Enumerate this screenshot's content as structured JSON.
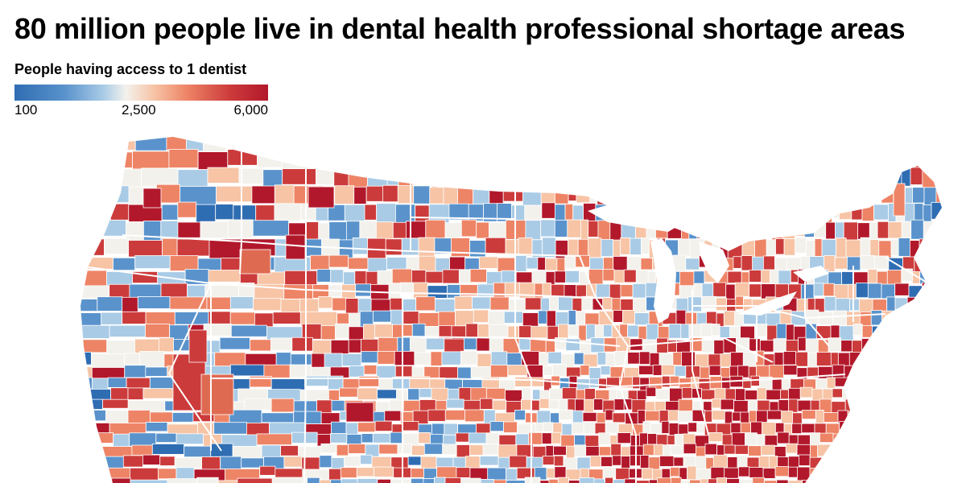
{
  "title": "80 million people live in dental health professional shortage areas",
  "legend": {
    "title": "People having access to 1 dentist",
    "min_label": "100",
    "mid_label": "2,500",
    "max_label": "6,000",
    "min_value": 100,
    "mid_value": 2500,
    "max_value": 6000,
    "colors": [
      "#2f6db3",
      "#5a93cc",
      "#a9cbe6",
      "#f3f1ec",
      "#f7c4a6",
      "#ee8466",
      "#cc3b3b",
      "#b2182b"
    ]
  },
  "map": {
    "subject": "US counties colored by population per dentist",
    "border_color": "#ffffff"
  }
}
